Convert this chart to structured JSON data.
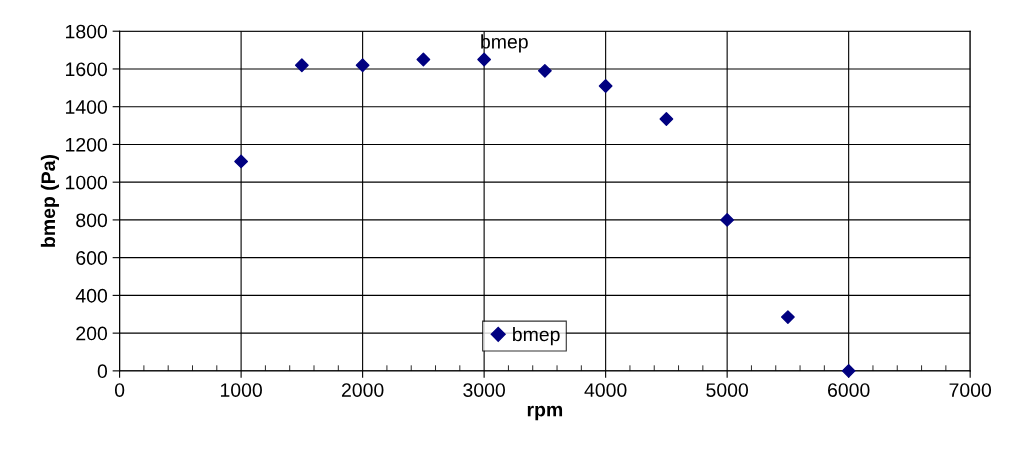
{
  "chart_data": {
    "type": "scatter",
    "xlabel": "rpm",
    "ylabel": "bmep (Pa)",
    "x": [
      1000,
      1500,
      2000,
      2500,
      3000,
      3500,
      4000,
      4500,
      5000,
      5500,
      6000
    ],
    "series": [
      {
        "name": "bmep",
        "color": "#000080",
        "values": [
          1110,
          1620,
          1620,
          1650,
          1650,
          1590,
          1510,
          1335,
          800,
          285,
          0
        ]
      }
    ],
    "annotations": [
      {
        "text": "bmep",
        "x": 3000,
        "y": 1650
      }
    ],
    "xlim": [
      0,
      7000
    ],
    "xticks": [
      0,
      1000,
      2000,
      3000,
      4000,
      5000,
      6000,
      7000
    ],
    "ylim": [
      0,
      1800
    ],
    "yticks": [
      0,
      200,
      400,
      600,
      800,
      1000,
      1200,
      1400,
      1600,
      1800
    ],
    "grid": true,
    "legend": "bottom",
    "marker": "diamond"
  }
}
